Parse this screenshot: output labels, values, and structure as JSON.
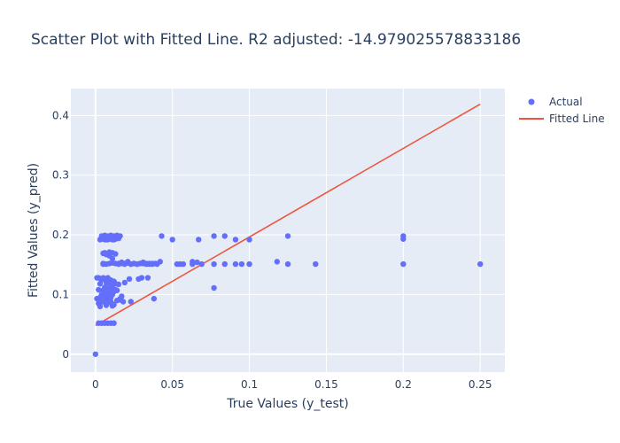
{
  "chart_data": {
    "type": "scatter",
    "title": "Scatter Plot with Fitted Line. R2 adjusted: -14.979025578833186",
    "xlabel": "True Values (y_test)",
    "ylabel": "Fitted Values (y_pred)",
    "xlim": [
      -0.016,
      0.266
    ],
    "ylim": [
      -0.03,
      0.445
    ],
    "x_ticks": [
      0,
      0.05,
      0.1,
      0.15,
      0.2,
      0.25
    ],
    "x_tick_labels": [
      "0",
      "0.05",
      "0.1",
      "0.15",
      "0.2",
      "0.25"
    ],
    "y_ticks": [
      0,
      0.1,
      0.2,
      0.3,
      0.4
    ],
    "y_tick_labels": [
      "0",
      "0.1",
      "0.2",
      "0.3",
      "0.4"
    ],
    "grid": true,
    "legend_position": "top-right",
    "colors": {
      "actual": "#636efa",
      "fitted": "#ef553b",
      "plot_bg": "#e5ecf6",
      "grid": "#ffffff",
      "text": "#2a3f5f"
    },
    "series": [
      {
        "name": "Actual",
        "mode": "markers",
        "x": [
          0,
          0.001,
          0.001,
          0.002,
          0.002,
          0.003,
          0.003,
          0.003,
          0.004,
          0.004,
          0.005,
          0.005,
          0.005,
          0.006,
          0.006,
          0.006,
          0.007,
          0.007,
          0.007,
          0.008,
          0.008,
          0.008,
          0.009,
          0.009,
          0.009,
          0.01,
          0.01,
          0.01,
          0.011,
          0.011,
          0.012,
          0.012,
          0.013,
          0.013,
          0.014,
          0.015,
          0.016,
          0.017,
          0.002,
          0.004,
          0.006,
          0.008,
          0.01,
          0.012,
          0.003,
          0.005,
          0.007,
          0.009,
          0.011,
          0.013,
          0.015,
          0.004,
          0.006,
          0.008,
          0.01,
          0.012,
          0.014,
          0.016,
          0.005,
          0.006,
          0.007,
          0.009,
          0.011,
          0.013,
          0.015,
          0.017,
          0.019,
          0.021,
          0.023,
          0.025,
          0.027,
          0.029,
          0.031,
          0.033,
          0.035,
          0.037,
          0.039,
          0.005,
          0.007,
          0.009,
          0.011,
          0.013,
          0.015,
          0.017,
          0.019,
          0.021,
          0.023,
          0.025,
          0.027,
          0.029,
          0.031,
          0.033,
          0.035,
          0.037,
          0.04,
          0.042,
          0.006,
          0.008,
          0.01,
          0.012,
          0.005,
          0.009,
          0.011,
          0.007,
          0.011,
          0.012,
          0.01,
          0.014,
          0.016,
          0.018,
          0.019,
          0.022,
          0.028,
          0.03,
          0.034,
          0.023,
          0.038,
          0.002,
          0.003,
          0.007,
          0.011,
          0.05,
          0.053,
          0.055,
          0.057,
          0.063,
          0.066,
          0.069,
          0.077,
          0.084,
          0.091,
          0.095,
          0.1,
          0.067,
          0.077,
          0.084,
          0.091,
          0.1,
          0.118,
          0.125,
          0.143,
          0.2,
          0.25,
          0.2,
          0.2,
          0.125,
          0.077,
          0.063,
          0.043
        ],
        "y": [
          0,
          0.093,
          0.128,
          0.085,
          0.108,
          0.08,
          0.095,
          0.118,
          0.1,
          0.125,
          0.088,
          0.107,
          0.128,
          0.096,
          0.112,
          0.125,
          0.085,
          0.104,
          0.12,
          0.092,
          0.11,
          0.128,
          0.087,
          0.1,
          0.118,
          0.095,
          0.108,
          0.124,
          0.1,
          0.115,
          0.105,
          0.122,
          0.108,
          0.118,
          0.107,
          0.117,
          0.093,
          0.097,
          0.052,
          0.052,
          0.052,
          0.052,
          0.052,
          0.052,
          0.192,
          0.193,
          0.192,
          0.194,
          0.192,
          0.193,
          0.194,
          0.198,
          0.199,
          0.198,
          0.199,
          0.198,
          0.199,
          0.198,
          0.169,
          0.17,
          0.167,
          0.171,
          0.17,
          0.168,
          0.152,
          0.152,
          0.151,
          0.153,
          0.151,
          0.152,
          0.151,
          0.152,
          0.152,
          0.151,
          0.152,
          0.151,
          0.152,
          0.152,
          0.151,
          0.152,
          0.153,
          0.152,
          0.151,
          0.154,
          0.152,
          0.155,
          0.151,
          0.152,
          0.151,
          0.152,
          0.154,
          0.152,
          0.151,
          0.152,
          0.151,
          0.155,
          0.192,
          0.192,
          0.193,
          0.192,
          0.151,
          0.165,
          0.16,
          0.082,
          0.081,
          0.083,
          0.088,
          0.09,
          0.091,
          0.088,
          0.12,
          0.126,
          0.126,
          0.128,
          0.128,
          0.088,
          0.093,
          0.128,
          0.087,
          0.089,
          0.083,
          0.192,
          0.151,
          0.151,
          0.151,
          0.151,
          0.154,
          0.151,
          0.151,
          0.151,
          0.151,
          0.151,
          0.151,
          0.192,
          0.198,
          0.198,
          0.192,
          0.192,
          0.155,
          0.151,
          0.151,
          0.151,
          0.151,
          0.198,
          0.193,
          0.198,
          0.111,
          0.155,
          0.198
        ]
      },
      {
        "name": "Fitted Line",
        "mode": "lines",
        "x": [
          0,
          0.25
        ],
        "y": [
          0.048,
          0.419
        ]
      }
    ]
  }
}
